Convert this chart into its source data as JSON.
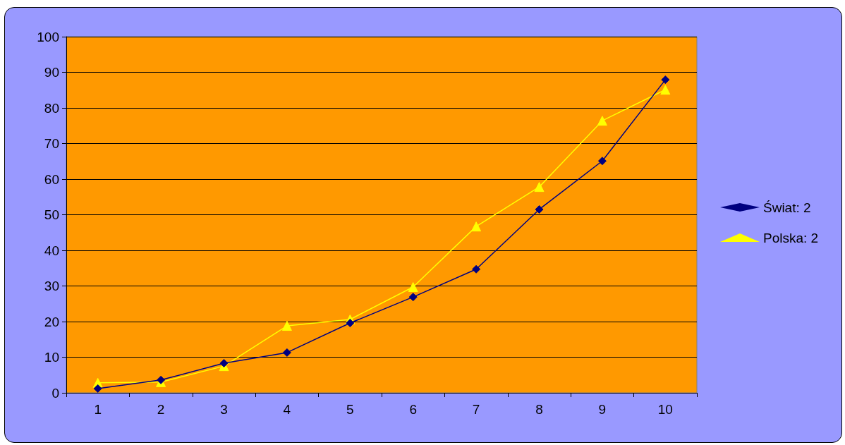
{
  "chart_data": {
    "type": "line",
    "categories": [
      "1",
      "2",
      "3",
      "4",
      "5",
      "6",
      "7",
      "8",
      "9",
      "10"
    ],
    "series": [
      {
        "name": "Świat: 2",
        "color": "#000080",
        "marker": "diamond",
        "values": [
          1.2,
          3.6,
          8.3,
          11.3,
          19.6,
          26.9,
          34.7,
          51.5,
          65.1,
          87.9
        ]
      },
      {
        "name": "Polska: 2",
        "color": "#ffff00",
        "marker": "triangle",
        "values": [
          2.8,
          3.0,
          7.5,
          18.8,
          20.6,
          29.7,
          46.7,
          57.8,
          76.4,
          85.1
        ]
      }
    ],
    "ylim": [
      0,
      100
    ],
    "yticks": [
      0,
      10,
      20,
      30,
      40,
      50,
      60,
      70,
      80,
      90,
      100
    ],
    "grid": "y",
    "legend": "right",
    "line_style": "solid"
  }
}
